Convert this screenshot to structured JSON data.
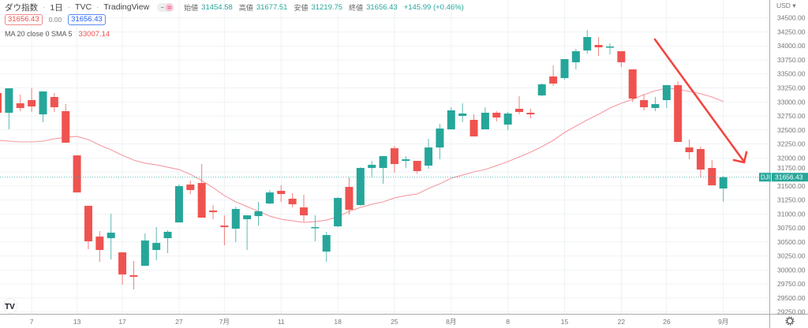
{
  "header": {
    "symbol": "ダウ指数",
    "interval": "1日",
    "source": "TVC",
    "platform": "TradingView",
    "open_label": "始値",
    "open": "31454.58",
    "high_label": "高値",
    "high": "31677.51",
    "low_label": "安値",
    "low": "31219.75",
    "close_label": "終値",
    "close": "31656.43",
    "change": "+145.99 (+0.46%)",
    "sell_price": "31656.43",
    "spread": "0.00",
    "buy_price": "31656.43",
    "ma_label": "MA 20 close 0 SMA 5",
    "ma_value": "33007.14"
  },
  "price_axis": {
    "currency": "USD",
    "current_ticker": "DJI",
    "current_price": "31656.43"
  },
  "colors": {
    "up": "#26a69a",
    "down": "#ef5350",
    "ma": "#f59aa2",
    "arrow": "#f2463f"
  },
  "chart_data": {
    "type": "candlestick",
    "title": "ダウ指数 · 1日 · TVC",
    "ylim": [
      29250,
      34500
    ],
    "ytick_step": 250,
    "yticks": [
      "34500.00",
      "34250.00",
      "34000.00",
      "33750.00",
      "33500.00",
      "33250.00",
      "33000.00",
      "32750.00",
      "32500.00",
      "32250.00",
      "32000.00",
      "31750.00",
      "31500.00",
      "31250.00",
      "31000.00",
      "30750.00",
      "30500.00",
      "30250.00",
      "30000.00",
      "29750.00",
      "29500.00",
      "29250.00"
    ],
    "xticks": [
      {
        "label": "7",
        "index": 3
      },
      {
        "label": "13",
        "index": 7
      },
      {
        "label": "17",
        "index": 11
      },
      {
        "label": "27",
        "index": 16
      },
      {
        "label": "7月",
        "index": 20
      },
      {
        "label": "11",
        "index": 25
      },
      {
        "label": "18",
        "index": 30
      },
      {
        "label": "25",
        "index": 35
      },
      {
        "label": "8月",
        "index": 40
      },
      {
        "label": "8",
        "index": 45
      },
      {
        "label": "15",
        "index": 50
      },
      {
        "label": "22",
        "index": 55
      },
      {
        "label": "26",
        "index": 59
      },
      {
        "label": "9月",
        "index": 64
      }
    ],
    "ohlc": [
      [
        33159,
        33200,
        32780,
        32807
      ],
      [
        32807,
        33243,
        32511,
        33243
      ],
      [
        32976,
        33130,
        32835,
        32891
      ],
      [
        33032,
        33243,
        32821,
        32919
      ],
      [
        32778,
        33187,
        32638,
        33187
      ],
      [
        33088,
        33159,
        32821,
        32905
      ],
      [
        32835,
        32961,
        32272,
        32272
      ],
      [
        32046,
        32046,
        31384,
        31384
      ],
      [
        31145,
        31145,
        30371,
        30512
      ],
      [
        30596,
        30695,
        30145,
        30357
      ],
      [
        30568,
        31004,
        30188,
        30666
      ],
      [
        30314,
        30314,
        29737,
        29920
      ],
      [
        29906,
        30160,
        29653,
        29878
      ],
      [
        30075,
        30652,
        30075,
        30526
      ],
      [
        30357,
        30765,
        30174,
        30483
      ],
      [
        30568,
        30709,
        30300,
        30681
      ],
      [
        30849,
        31525,
        30849,
        31497
      ],
      [
        31525,
        31596,
        31356,
        31427
      ],
      [
        31553,
        31891,
        30934,
        30934
      ],
      [
        31061,
        31159,
        30906,
        31032
      ],
      [
        30793,
        30976,
        30441,
        30765
      ],
      [
        30737,
        31131,
        30498,
        31089
      ],
      [
        30906,
        30976,
        30357,
        30976
      ],
      [
        30962,
        31216,
        30793,
        31047
      ],
      [
        31187,
        31427,
        31173,
        31384
      ],
      [
        31413,
        31511,
        31215,
        31356
      ],
      [
        31272,
        31370,
        31117,
        31173
      ],
      [
        31117,
        31342,
        30864,
        30976
      ],
      [
        30751,
        30976,
        30512,
        30765
      ],
      [
        30328,
        30681,
        30145,
        30624
      ],
      [
        30779,
        31300,
        30765,
        31286
      ],
      [
        31483,
        31652,
        30990,
        31075
      ],
      [
        31159,
        31835,
        31145,
        31821
      ],
      [
        31821,
        31948,
        31652,
        31877
      ],
      [
        31821,
        32032,
        31539,
        32032
      ],
      [
        32173,
        32215,
        31736,
        31891
      ],
      [
        31948,
        32032,
        31821,
        31976
      ],
      [
        31948,
        31948,
        31722,
        31765
      ],
      [
        31863,
        32342,
        31807,
        32187
      ],
      [
        32187,
        32610,
        31976,
        32525
      ],
      [
        32511,
        32905,
        32511,
        32849
      ],
      [
        32750,
        32976,
        32638,
        32793
      ],
      [
        32680,
        32778,
        32384,
        32384
      ],
      [
        32511,
        32905,
        32511,
        32807
      ],
      [
        32807,
        32835,
        32652,
        32722
      ],
      [
        32596,
        32821,
        32497,
        32793
      ],
      [
        32877,
        33102,
        32778,
        32821
      ],
      [
        32807,
        32877,
        32708,
        32778
      ],
      [
        33116,
        33330,
        33100,
        33314
      ],
      [
        33454,
        33651,
        33285,
        33328
      ],
      [
        33426,
        33764,
        33398,
        33764
      ],
      [
        33708,
        33947,
        33581,
        33905
      ],
      [
        33919,
        34285,
        33863,
        34158
      ],
      [
        34017,
        34158,
        33820,
        33975
      ],
      [
        33975,
        34045,
        33848,
        33989
      ],
      [
        33905,
        33905,
        33623,
        33708
      ],
      [
        33581,
        33581,
        33004,
        33060
      ],
      [
        33032,
        33130,
        32849,
        32905
      ],
      [
        32891,
        33088,
        32835,
        32961
      ],
      [
        33032,
        33300,
        32891,
        33300
      ],
      [
        33300,
        33370,
        32286,
        32286
      ],
      [
        32187,
        32328,
        31976,
        32103
      ],
      [
        32159,
        32201,
        31652,
        31793
      ],
      [
        31821,
        31962,
        31511,
        31511
      ],
      [
        31454.58,
        31677.51,
        31219.75,
        31656.43
      ]
    ],
    "ma_series": {
      "name": "MA 20 close 0 SMA 5",
      "values": [
        32314,
        32300,
        32286,
        32286,
        32300,
        32342,
        32370,
        32384,
        32328,
        32229,
        32145,
        32046,
        31962,
        31905,
        31877,
        31835,
        31793,
        31708,
        31596,
        31469,
        31328,
        31216,
        31131,
        31047,
        30962,
        30906,
        30878,
        30849,
        30864,
        30892,
        30948,
        31047,
        31117,
        31173,
        31216,
        31286,
        31328,
        31356,
        31455,
        31539,
        31638,
        31694,
        31751,
        31793,
        31863,
        31934,
        32018,
        32103,
        32201,
        32314,
        32455,
        32567,
        32680,
        32778,
        32891,
        32976,
        33046,
        33130,
        33201,
        33243,
        33229,
        33187,
        33145,
        33088,
        33007.14
      ]
    },
    "current_price": 31656.43,
    "annotation": "downtrend-arrow"
  }
}
